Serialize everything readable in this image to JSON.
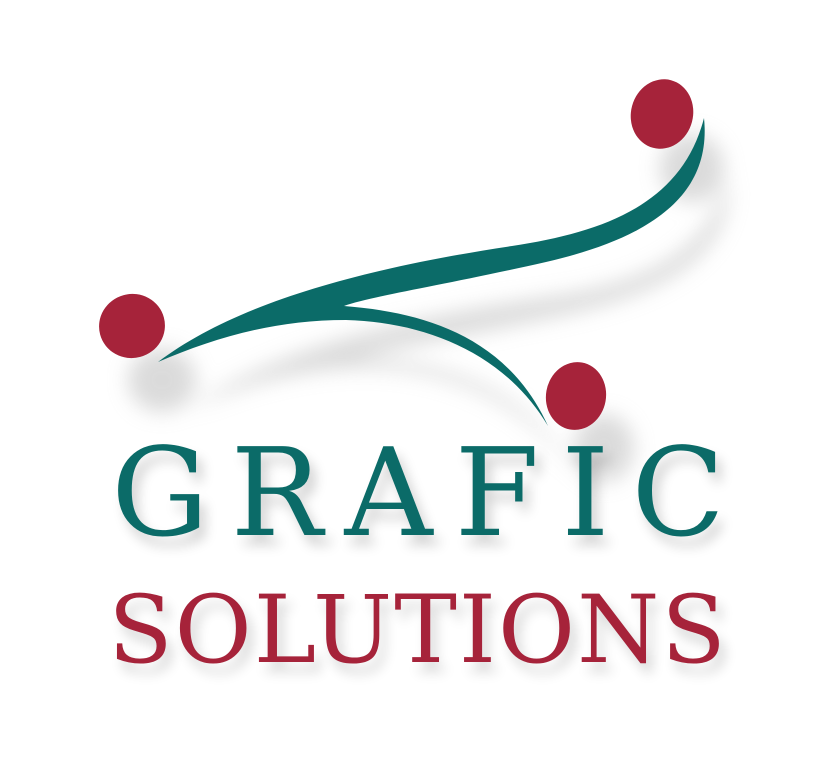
{
  "logo": {
    "line1": "GRAFIC",
    "line2": "SOLUTIONS",
    "colors": {
      "teal": "#0b6b68",
      "crimson": "#a6233a",
      "background": "#ffffff",
      "shadow": "#cfcfcf"
    },
    "icons": [
      "three-figures-swoosh-icon"
    ]
  }
}
